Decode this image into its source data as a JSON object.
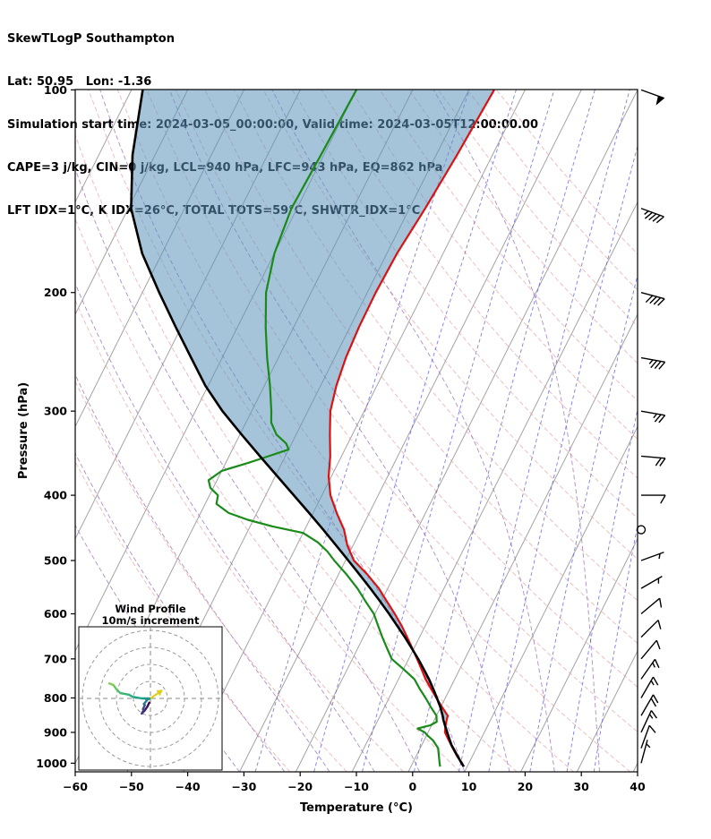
{
  "header": {
    "line1": "SkewTLogP Southampton",
    "line2": "Lat: 50.95   Lon: -1.36",
    "line3": "Simulation start time: 2024-03-05_00:00:00, Valid time: 2024-03-05T12:00:00.00",
    "line4": "CAPE=3 j/kg, CIN=0 j/kg, LCL=940 hPa, LFC=943 hPa, EQ=862 hPa",
    "line5": "LFT IDX=1°C, K IDX=26°C, TOTAL TOTS=59°C, SHWTR_IDX=1°C"
  },
  "chart_data": {
    "type": "line",
    "subtype": "skewt_logp_sounding",
    "title": "SkewTLogP Southampton",
    "x_axis": {
      "label": "Temperature (°C)",
      "range_c": [
        -60,
        40
      ],
      "ticks": [
        -60,
        -50,
        -40,
        -30,
        -20,
        -10,
        0,
        10,
        20,
        30,
        40
      ]
    },
    "y_axis": {
      "label": "Pressure (hPa)",
      "scale": "log",
      "range_hpa": [
        100,
        1030
      ],
      "ticks": [
        100,
        200,
        300,
        400,
        500,
        600,
        700,
        800,
        900,
        1000
      ]
    },
    "skew_c_per_decade": 60,
    "temperature_profile_p_c": [
      [
        1012,
        9.4
      ],
      [
        1000,
        8.8
      ],
      [
        975,
        7.2
      ],
      [
        950,
        5.8
      ],
      [
        925,
        4.4
      ],
      [
        900,
        3.0
      ],
      [
        875,
        2.4
      ],
      [
        850,
        2.0
      ],
      [
        825,
        0.2
      ],
      [
        800,
        -1.6
      ],
      [
        775,
        -3.4
      ],
      [
        750,
        -5.2
      ],
      [
        725,
        -6.8
      ],
      [
        700,
        -8.5
      ],
      [
        675,
        -10.3
      ],
      [
        650,
        -12.2
      ],
      [
        625,
        -14.2
      ],
      [
        600,
        -16.5
      ],
      [
        575,
        -19.0
      ],
      [
        550,
        -21.6
      ],
      [
        525,
        -24.8
      ],
      [
        500,
        -28.5
      ],
      [
        475,
        -31.0
      ],
      [
        450,
        -33.0
      ],
      [
        425,
        -35.8
      ],
      [
        400,
        -38.5
      ],
      [
        375,
        -40.5
      ],
      [
        350,
        -42.0
      ],
      [
        325,
        -44.0
      ],
      [
        300,
        -46.0
      ],
      [
        275,
        -47.2
      ],
      [
        250,
        -48.0
      ],
      [
        225,
        -48.4
      ],
      [
        200,
        -48.5
      ],
      [
        175,
        -48.2
      ],
      [
        150,
        -47.2
      ],
      [
        125,
        -46.3
      ],
      [
        100,
        -45.5
      ]
    ],
    "dewpoint_profile_p_c": [
      [
        1012,
        5.2
      ],
      [
        1000,
        4.8
      ],
      [
        975,
        4.0
      ],
      [
        950,
        3.2
      ],
      [
        925,
        1.6
      ],
      [
        910,
        0.2
      ],
      [
        900,
        -0.6
      ],
      [
        888,
        -2.2
      ],
      [
        878,
        -0.2
      ],
      [
        868,
        0.6
      ],
      [
        850,
        0.0
      ],
      [
        825,
        -1.8
      ],
      [
        800,
        -3.5
      ],
      [
        775,
        -5.4
      ],
      [
        750,
        -7.2
      ],
      [
        725,
        -10.0
      ],
      [
        700,
        -13.0
      ],
      [
        675,
        -14.8
      ],
      [
        650,
        -16.6
      ],
      [
        625,
        -18.4
      ],
      [
        600,
        -20.2
      ],
      [
        575,
        -22.8
      ],
      [
        550,
        -25.4
      ],
      [
        525,
        -28.5
      ],
      [
        500,
        -32.0
      ],
      [
        485,
        -34.0
      ],
      [
        470,
        -36.5
      ],
      [
        455,
        -40.0
      ],
      [
        445,
        -46.0
      ],
      [
        435,
        -51.0
      ],
      [
        425,
        -55.0
      ],
      [
        412,
        -58.0
      ],
      [
        400,
        -58.5
      ],
      [
        390,
        -60.5
      ],
      [
        380,
        -61.5
      ],
      [
        368,
        -60.0
      ],
      [
        358,
        -56.0
      ],
      [
        350,
        -53.0
      ],
      [
        342,
        -50.0
      ],
      [
        335,
        -51.0
      ],
      [
        325,
        -53.5
      ],
      [
        312,
        -55.5
      ],
      [
        300,
        -56.5
      ],
      [
        275,
        -59.0
      ],
      [
        250,
        -62.0
      ],
      [
        225,
        -65.0
      ],
      [
        200,
        -68.0
      ],
      [
        175,
        -70.0
      ],
      [
        150,
        -71.0
      ],
      [
        125,
        -70.5
      ],
      [
        100,
        -70.0
      ]
    ],
    "parcel_profile_p_c": [
      [
        1012,
        9.4
      ],
      [
        1000,
        8.7
      ],
      [
        975,
        7.3
      ],
      [
        950,
        5.9
      ],
      [
        940,
        5.3
      ],
      [
        925,
        4.6
      ],
      [
        900,
        3.4
      ],
      [
        875,
        2.2
      ],
      [
        862,
        1.6
      ],
      [
        850,
        1.1
      ],
      [
        825,
        -0.1
      ],
      [
        800,
        -1.5
      ],
      [
        775,
        -3.0
      ],
      [
        750,
        -4.6
      ],
      [
        725,
        -6.4
      ],
      [
        700,
        -8.3
      ],
      [
        675,
        -10.4
      ],
      [
        650,
        -12.6
      ],
      [
        625,
        -15.0
      ],
      [
        600,
        -17.5
      ],
      [
        575,
        -20.2
      ],
      [
        550,
        -23.1
      ],
      [
        525,
        -26.2
      ],
      [
        500,
        -29.5
      ],
      [
        475,
        -33.0
      ],
      [
        450,
        -36.7
      ],
      [
        425,
        -40.7
      ],
      [
        400,
        -45.0
      ],
      [
        375,
        -49.6
      ],
      [
        350,
        -54.5
      ],
      [
        325,
        -59.7
      ],
      [
        300,
        -65.2
      ],
      [
        275,
        -70.5
      ],
      [
        250,
        -75.5
      ],
      [
        225,
        -81.0
      ],
      [
        200,
        -87.0
      ],
      [
        175,
        -93.5
      ],
      [
        150,
        -99.5
      ],
      [
        125,
        -104.0
      ],
      [
        100,
        -108.0
      ]
    ],
    "shading": {
      "between": [
        "parcel",
        "temperature"
      ],
      "p_top_hpa": 100,
      "p_bottom_hpa": 862
    },
    "indices": {
      "cape_j_kg": 3,
      "cin_j_kg": 0,
      "lcl_hpa": 940,
      "lfc_hpa": 943,
      "eq_hpa": 862,
      "lifted_index_c": 1,
      "k_index_c": 26,
      "total_totals_c": 59,
      "showalter_index_c": 1
    },
    "isotherms_c": {
      "min": -160,
      "max": 40,
      "step": 10
    },
    "dry_adiabats_theta_k": {
      "min": 250,
      "max": 440,
      "step": 10
    },
    "moist_adiabats_start_c": [
      -30,
      -22,
      -14,
      -6,
      2,
      10,
      18,
      26,
      34
    ],
    "mixing_ratio_g_per_kg": [
      0.4,
      1,
      2,
      4,
      7,
      10,
      16,
      24,
      32
    ],
    "wind_barbs_p_dir_kt": [
      [
        1000,
        15,
        5
      ],
      [
        950,
        20,
        10
      ],
      [
        900,
        25,
        15
      ],
      [
        850,
        30,
        20
      ],
      [
        800,
        30,
        15
      ],
      [
        750,
        35,
        15
      ],
      [
        700,
        40,
        10
      ],
      [
        650,
        45,
        10
      ],
      [
        600,
        50,
        10
      ],
      [
        550,
        60,
        5
      ],
      [
        500,
        70,
        5
      ],
      [
        450,
        0,
        0
      ],
      [
        400,
        90,
        10
      ],
      [
        350,
        95,
        20
      ],
      [
        300,
        100,
        25
      ],
      [
        250,
        100,
        35
      ],
      [
        200,
        105,
        40
      ],
      [
        150,
        110,
        45
      ],
      [
        100,
        110,
        50
      ]
    ],
    "hodograph": {
      "title": "Wind Profile",
      "subtitle": "10m/s increment",
      "ring_step_ms": 10,
      "rings_ms": [
        10,
        20,
        30,
        40
      ],
      "points_uv_ms": [
        [
          -0.7,
          -2.5
        ],
        [
          -1.8,
          -4.8
        ],
        [
          -3.3,
          -7.0
        ],
        [
          -5.1,
          -8.9
        ],
        [
          -3.9,
          -6.7
        ],
        [
          -4.4,
          -6.3
        ],
        [
          -3.3,
          -3.9
        ],
        [
          -3.6,
          -3.6
        ],
        [
          -3.9,
          -3.3
        ],
        [
          -2.2,
          -1.3
        ],
        [
          -2.4,
          -0.9
        ],
        [
          0,
          0
        ],
        [
          -5.1,
          0.0
        ],
        [
          -10.3,
          0.9
        ],
        [
          -12.7,
          2.2
        ],
        [
          -17.7,
          3.1
        ],
        [
          -19.9,
          5.3
        ],
        [
          -21.8,
          7.9
        ],
        [
          -24.2,
          8.8
        ]
      ]
    },
    "colors": {
      "temperature": "#dd1111",
      "dewpoint": "#1a8a1a",
      "parcel": "#000000",
      "cape_shade": "#5b93ba",
      "isotherm": "#a3a3a3",
      "dry_adiabat": "#e5a0a0",
      "moist_adiabat": "#9d6fb8",
      "mixing_ratio": "#5353dd",
      "frame": "#000000",
      "barb": "#000000",
      "hodo_ring": "#999999",
      "hodo_arrow": "#ddcf1e"
    }
  }
}
